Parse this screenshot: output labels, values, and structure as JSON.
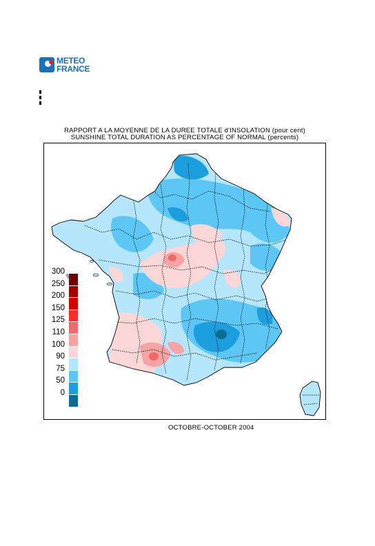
{
  "header": {
    "logo_line1": "METEO",
    "logo_line2": "FRANCE"
  },
  "map": {
    "title_fr": "RAPPORT A LA MOYENNE DE LA DUREE TOTALE d'INSOLATION (pour cent)",
    "title_en": "SUNSHINE TOTAL DURATION AS PERCENTAGE OF NORMAL (percents)",
    "period": "OCTOBRE-OCTOBER 2004"
  },
  "legend": {
    "unit": "%",
    "classes": [
      {
        "label": "300",
        "color": "#6a0000"
      },
      {
        "label": "250",
        "color": "#a30000"
      },
      {
        "label": "200",
        "color": "#d50000"
      },
      {
        "label": "150",
        "color": "#ff2a2a"
      },
      {
        "label": "125",
        "color": "#f06a6a"
      },
      {
        "label": "110",
        "color": "#f5a3a3"
      },
      {
        "label": "100",
        "color": "#fbd6d6"
      },
      {
        "label": "90",
        "color": "#b6e6fb"
      },
      {
        "label": "75",
        "color": "#5cc6f4"
      },
      {
        "label": "50",
        "color": "#1c9ede"
      },
      {
        "label": "0",
        "color": "#0a6b96"
      }
    ]
  }
}
